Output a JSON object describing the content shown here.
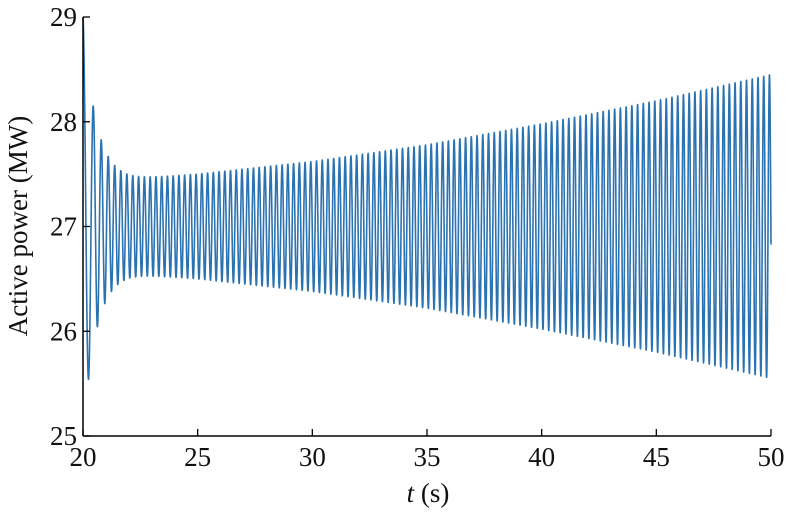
{
  "chart_data": {
    "type": "line",
    "title": "",
    "xlabel_var": "t",
    "xlabel_unit": " (s)",
    "ylabel": "Active power (MW)",
    "xlim": [
      20,
      50
    ],
    "ylim": [
      25,
      29
    ],
    "xticks": [
      20,
      25,
      30,
      35,
      40,
      45,
      50
    ],
    "yticks": [
      25,
      26,
      27,
      28,
      29
    ],
    "grid": false,
    "line_color": "#2a72b0",
    "series": [
      {
        "signal": "oscillation",
        "baseline": 27.0,
        "start_time": 20.0,
        "end_time": 50.0,
        "oscillation_period": 0.25,
        "initial_transient": {
          "peak_max": 29.0,
          "peak_min": 25.5,
          "settled_by_time": 21.8
        },
        "settled_envelope": [
          {
            "t": 22.0,
            "max": 27.45,
            "min": 26.55
          },
          {
            "t": 25.0,
            "max": 27.5,
            "min": 26.5
          },
          {
            "t": 30.0,
            "max": 27.62,
            "min": 26.38
          },
          {
            "t": 35.0,
            "max": 27.78,
            "min": 26.22
          },
          {
            "t": 40.0,
            "max": 27.98,
            "min": 26.02
          },
          {
            "t": 45.0,
            "max": 28.2,
            "min": 25.8
          },
          {
            "t": 50.0,
            "max": 28.45,
            "min": 25.55
          }
        ]
      }
    ]
  }
}
